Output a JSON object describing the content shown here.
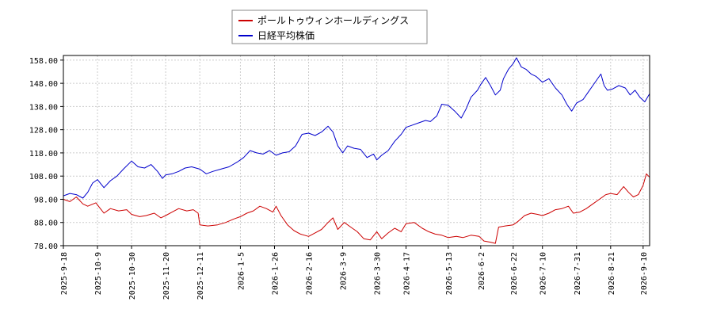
{
  "chart_data": {
    "type": "line",
    "title": "",
    "xlabel": "",
    "ylabel": "",
    "ylim": [
      78,
      160
    ],
    "yticks": [
      "158.00",
      "148.00",
      "138.00",
      "128.00",
      "118.00",
      "108.00",
      "98.00",
      "88.00",
      "78.00"
    ],
    "ytick_values": [
      158,
      148,
      138,
      128,
      118,
      108,
      98,
      88,
      78
    ],
    "xticks": [
      "2025-9-18",
      "2025-10-9",
      "2025-10-30",
      "2025-11-20",
      "2025-12-11",
      "2026-1-5",
      "2026-1-26",
      "2026-2-16",
      "2026-3-9",
      "2026-3-30",
      "2026-4-17",
      "2026-5-13",
      "2026-6-2",
      "2026-6-22",
      "2026-7-10",
      "2026-7-31",
      "2026-8-21",
      "2026-9-10"
    ],
    "x_range": [
      "2025-9-18",
      "2026-9-14"
    ],
    "grid": true,
    "legend_position": "top-center",
    "series": [
      {
        "name": "ポールトゥウィンホールディングス",
        "color": "#cc0000",
        "points": [
          [
            "2025-9-18",
            98.0
          ],
          [
            "2025-9-22",
            97.0
          ],
          [
            "2025-9-26",
            99.0
          ],
          [
            "2025-9-30",
            96.0
          ],
          [
            "2025-10-3",
            95.0
          ],
          [
            "2025-10-8",
            96.5
          ],
          [
            "2025-10-13",
            92.0
          ],
          [
            "2025-10-17",
            94.0
          ],
          [
            "2025-10-22",
            93.0
          ],
          [
            "2025-10-27",
            93.5
          ],
          [
            "2025-10-30",
            91.5
          ],
          [
            "2025-11-4",
            90.5
          ],
          [
            "2025-11-8",
            91.0
          ],
          [
            "2025-11-13",
            92.0
          ],
          [
            "2025-11-17",
            90.0
          ],
          [
            "2025-11-20",
            91.0
          ],
          [
            "2025-11-24",
            92.5
          ],
          [
            "2025-11-28",
            94.0
          ],
          [
            "2025-12-3",
            93.0
          ],
          [
            "2025-12-7",
            93.5
          ],
          [
            "2025-12-10",
            92.0
          ],
          [
            "2025-12-11",
            87.0
          ],
          [
            "2025-12-16",
            86.5
          ],
          [
            "2025-12-22",
            87.0
          ],
          [
            "2025-12-27",
            88.0
          ],
          [
            "2026-1-1",
            89.5
          ],
          [
            "2026-1-5",
            90.5
          ],
          [
            "2026-1-9",
            92.0
          ],
          [
            "2026-1-13",
            93.0
          ],
          [
            "2026-1-17",
            95.0
          ],
          [
            "2026-1-21",
            94.0
          ],
          [
            "2026-1-25",
            92.5
          ],
          [
            "2026-1-27",
            95.0
          ],
          [
            "2026-1-30",
            91.0
          ],
          [
            "2026-2-3",
            87.0
          ],
          [
            "2026-2-7",
            84.5
          ],
          [
            "2026-2-11",
            83.0
          ],
          [
            "2026-2-16",
            82.0
          ],
          [
            "2026-2-20",
            83.5
          ],
          [
            "2026-2-24",
            85.0
          ],
          [
            "2026-2-28",
            88.0
          ],
          [
            "2026-3-3",
            90.0
          ],
          [
            "2026-3-6",
            85.0
          ],
          [
            "2026-3-10",
            88.0
          ],
          [
            "2026-3-14",
            86.0
          ],
          [
            "2026-3-18",
            84.0
          ],
          [
            "2026-3-22",
            81.0
          ],
          [
            "2026-3-26",
            80.5
          ],
          [
            "2026-3-30",
            84.0
          ],
          [
            "2026-4-2",
            81.0
          ],
          [
            "2026-4-6",
            83.5
          ],
          [
            "2026-4-10",
            85.5
          ],
          [
            "2026-4-14",
            84.0
          ],
          [
            "2026-4-17",
            87.5
          ],
          [
            "2026-4-22",
            88.0
          ],
          [
            "2026-4-27",
            85.5
          ],
          [
            "2026-5-1",
            84.0
          ],
          [
            "2026-5-5",
            83.0
          ],
          [
            "2026-5-9",
            82.5
          ],
          [
            "2026-5-13",
            81.5
          ],
          [
            "2026-5-18",
            82.0
          ],
          [
            "2026-5-22",
            81.5
          ],
          [
            "2026-5-27",
            82.5
          ],
          [
            "2026-6-1",
            82.0
          ],
          [
            "2026-6-4",
            80.0
          ],
          [
            "2026-6-8",
            79.5
          ],
          [
            "2026-6-11",
            79.0
          ],
          [
            "2026-6-13",
            86.0
          ],
          [
            "2026-6-17",
            86.5
          ],
          [
            "2026-6-22",
            87.0
          ],
          [
            "2026-6-25",
            88.5
          ],
          [
            "2026-6-29",
            91.0
          ],
          [
            "2026-7-3",
            92.0
          ],
          [
            "2026-7-7",
            91.5
          ],
          [
            "2026-7-10",
            91.0
          ],
          [
            "2026-7-14",
            92.0
          ],
          [
            "2026-7-18",
            93.5
          ],
          [
            "2026-7-22",
            94.0
          ],
          [
            "2026-7-26",
            95.0
          ],
          [
            "2026-7-29",
            92.0
          ],
          [
            "2026-8-2",
            92.5
          ],
          [
            "2026-8-6",
            94.0
          ],
          [
            "2026-8-10",
            96.0
          ],
          [
            "2026-8-14",
            98.0
          ],
          [
            "2026-8-18",
            100.0
          ],
          [
            "2026-8-21",
            100.5
          ],
          [
            "2026-8-25",
            100.0
          ],
          [
            "2026-8-29",
            103.5
          ],
          [
            "2026-9-1",
            101.0
          ],
          [
            "2026-9-4",
            99.0
          ],
          [
            "2026-9-7",
            100.0
          ],
          [
            "2026-9-10",
            104.0
          ],
          [
            "2026-9-12",
            109.0
          ],
          [
            "2026-9-14",
            107.5
          ]
        ]
      },
      {
        "name": "日経平均株価",
        "color": "#0000cc",
        "points": [
          [
            "2025-9-18",
            99.5
          ],
          [
            "2025-9-22",
            100.5
          ],
          [
            "2025-9-26",
            100.0
          ],
          [
            "2025-9-30",
            98.5
          ],
          [
            "2025-10-3",
            101.0
          ],
          [
            "2025-10-6",
            105.0
          ],
          [
            "2025-10-9",
            106.5
          ],
          [
            "2025-10-13",
            103.0
          ],
          [
            "2025-10-17",
            106.0
          ],
          [
            "2025-10-21",
            108.0
          ],
          [
            "2025-10-25",
            111.0
          ],
          [
            "2025-10-30",
            114.5
          ],
          [
            "2025-11-3",
            112.0
          ],
          [
            "2025-11-7",
            111.5
          ],
          [
            "2025-11-11",
            113.0
          ],
          [
            "2025-11-15",
            110.0
          ],
          [
            "2025-11-18",
            107.0
          ],
          [
            "2025-11-20",
            108.5
          ],
          [
            "2025-11-24",
            109.0
          ],
          [
            "2025-11-28",
            110.0
          ],
          [
            "2025-12-2",
            111.5
          ],
          [
            "2025-12-6",
            112.0
          ],
          [
            "2025-12-11",
            111.0
          ],
          [
            "2025-12-15",
            109.0
          ],
          [
            "2025-12-19",
            110.0
          ],
          [
            "2025-12-24",
            111.0
          ],
          [
            "2025-12-29",
            112.0
          ],
          [
            "2026-1-3",
            114.0
          ],
          [
            "2026-1-7",
            116.0
          ],
          [
            "2026-1-11",
            119.0
          ],
          [
            "2026-1-15",
            118.0
          ],
          [
            "2026-1-19",
            117.5
          ],
          [
            "2026-1-23",
            119.0
          ],
          [
            "2026-1-27",
            117.0
          ],
          [
            "2026-1-31",
            118.0
          ],
          [
            "2026-2-4",
            118.5
          ],
          [
            "2026-2-8",
            121.0
          ],
          [
            "2026-2-12",
            126.0
          ],
          [
            "2026-2-16",
            126.5
          ],
          [
            "2026-2-20",
            125.5
          ],
          [
            "2026-2-24",
            127.0
          ],
          [
            "2026-2-28",
            129.5
          ],
          [
            "2026-3-3",
            127.0
          ],
          [
            "2026-3-6",
            121.0
          ],
          [
            "2026-3-9",
            118.0
          ],
          [
            "2026-3-12",
            121.0
          ],
          [
            "2026-3-16",
            120.0
          ],
          [
            "2026-3-20",
            119.5
          ],
          [
            "2026-3-24",
            116.0
          ],
          [
            "2026-3-28",
            117.5
          ],
          [
            "2026-3-30",
            115.0
          ],
          [
            "2026-4-2",
            117.0
          ],
          [
            "2026-4-6",
            119.0
          ],
          [
            "2026-4-10",
            123.0
          ],
          [
            "2026-4-14",
            126.0
          ],
          [
            "2026-4-17",
            129.0
          ],
          [
            "2026-4-21",
            130.0
          ],
          [
            "2026-4-25",
            131.0
          ],
          [
            "2026-4-29",
            132.0
          ],
          [
            "2026-5-2",
            131.5
          ],
          [
            "2026-5-6",
            134.0
          ],
          [
            "2026-5-9",
            139.0
          ],
          [
            "2026-5-13",
            138.5
          ],
          [
            "2026-5-17",
            136.0
          ],
          [
            "2026-5-21",
            133.0
          ],
          [
            "2026-5-24",
            137.0
          ],
          [
            "2026-5-27",
            142.0
          ],
          [
            "2026-5-31",
            145.0
          ],
          [
            "2026-6-2",
            147.5
          ],
          [
            "2026-6-5",
            150.5
          ],
          [
            "2026-6-8",
            147.0
          ],
          [
            "2026-6-11",
            143.0
          ],
          [
            "2026-6-14",
            145.0
          ],
          [
            "2026-6-16",
            150.0
          ],
          [
            "2026-6-19",
            154.0
          ],
          [
            "2026-6-22",
            156.5
          ],
          [
            "2026-6-24",
            159.0
          ],
          [
            "2026-6-27",
            155.0
          ],
          [
            "2026-6-30",
            154.0
          ],
          [
            "2026-7-3",
            152.0
          ],
          [
            "2026-7-6",
            151.0
          ],
          [
            "2026-7-10",
            148.5
          ],
          [
            "2026-7-14",
            150.0
          ],
          [
            "2026-7-18",
            146.0
          ],
          [
            "2026-7-22",
            143.0
          ],
          [
            "2026-7-25",
            139.0
          ],
          [
            "2026-7-28",
            136.0
          ],
          [
            "2026-7-31",
            139.5
          ],
          [
            "2026-8-4",
            141.0
          ],
          [
            "2026-8-7",
            144.0
          ],
          [
            "2026-8-11",
            148.0
          ],
          [
            "2026-8-15",
            152.0
          ],
          [
            "2026-8-17",
            147.0
          ],
          [
            "2026-8-19",
            145.0
          ],
          [
            "2026-8-22",
            145.5
          ],
          [
            "2026-8-26",
            147.0
          ],
          [
            "2026-8-30",
            146.0
          ],
          [
            "2026-9-2",
            143.0
          ],
          [
            "2026-9-5",
            145.0
          ],
          [
            "2026-9-8",
            142.0
          ],
          [
            "2026-9-11",
            140.0
          ],
          [
            "2026-9-14",
            143.5
          ]
        ]
      }
    ]
  }
}
